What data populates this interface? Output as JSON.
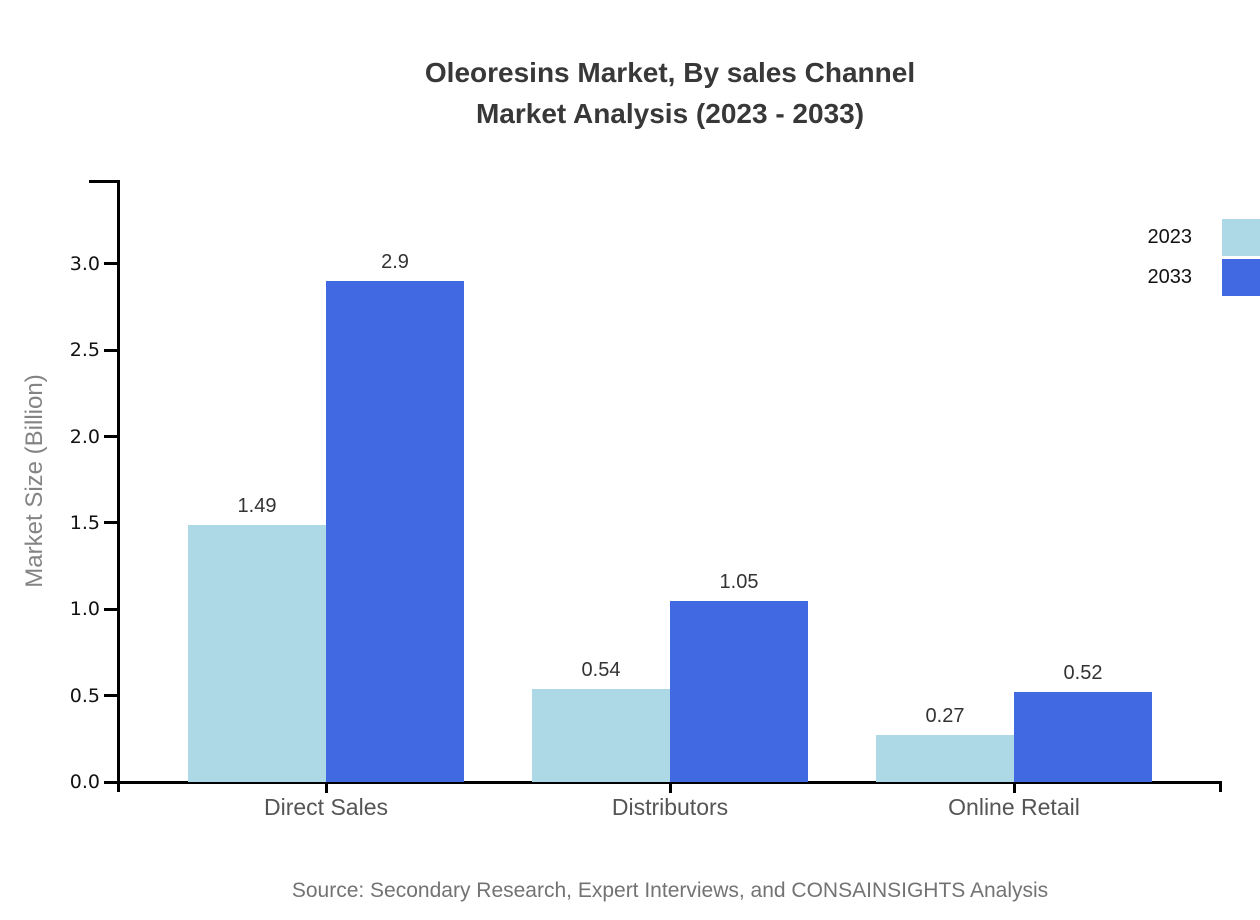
{
  "title": {
    "line1": "Oleoresins Market, By sales Channel",
    "line2": "Market Analysis (2023 - 2033)"
  },
  "source": "Source: Secondary Research, Expert Interviews, and CONSAINSIGHTS Analysis",
  "colors": {
    "series_2023": "#ADD8E6",
    "series_2033": "#4169E1",
    "axis": "#000000",
    "title_text": "#383838",
    "axis_title_text": "#848484",
    "category_text": "#555555",
    "value_label_text": "#333333",
    "source_text": "#737373"
  },
  "chart_data": {
    "type": "bar",
    "title": "Oleoresins Market, By sales Channel Market Analysis (2023 - 2033)",
    "categories": [
      "Direct Sales",
      "Distributors",
      "Online Retail"
    ],
    "series": [
      {
        "name": "2023",
        "color": "#ADD8E6",
        "values": [
          1.49,
          0.54,
          0.27
        ],
        "labels": [
          "1.49",
          "0.54",
          "0.27"
        ]
      },
      {
        "name": "2033",
        "color": "#4169E1",
        "values": [
          2.9,
          1.05,
          0.52
        ],
        "labels": [
          "2.9",
          "1.05",
          "0.52"
        ]
      }
    ],
    "xlabel": "",
    "ylabel": "Market Size (Billion)",
    "ylim": [
      0,
      3.5
    ],
    "yticks": [
      "0.0",
      "0.5",
      "1.0",
      "1.5",
      "2.0",
      "2.5",
      "3.0"
    ],
    "grid": false,
    "legend_position": "top-right",
    "value_labels_shown": true
  }
}
